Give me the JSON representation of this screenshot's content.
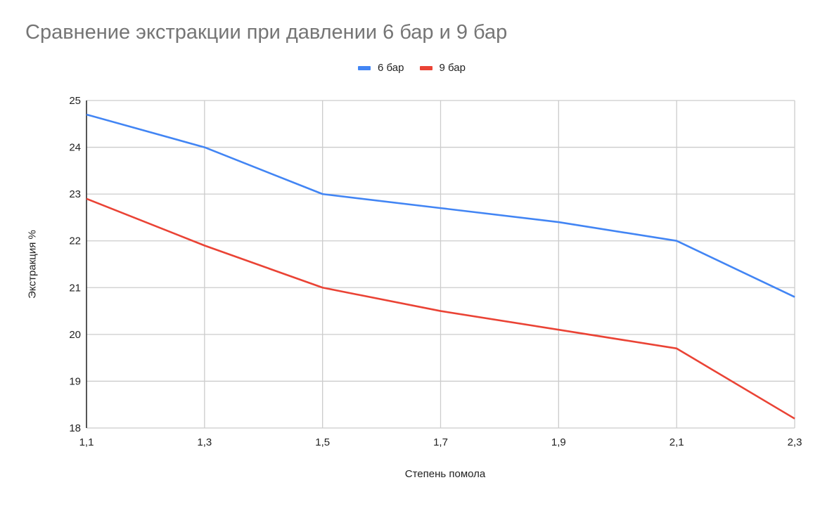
{
  "chart_data": {
    "type": "line",
    "title": "Сравнение экстракции при давлении 6 бар и 9 бар",
    "xlabel": "Степень помола",
    "ylabel": "Экстракция %",
    "x": [
      "1,1",
      "1,3",
      "1,5",
      "1,7",
      "1,9",
      "2,1",
      "2,3"
    ],
    "series": [
      {
        "name": "6 бар",
        "color": "#4285F4",
        "values": [
          24.7,
          24.0,
          23.0,
          22.7,
          22.4,
          22.0,
          20.8
        ]
      },
      {
        "name": "9 бар",
        "color": "#EA4335",
        "values": [
          22.9,
          21.9,
          21.0,
          20.5,
          20.1,
          19.7,
          18.2
        ]
      }
    ],
    "ylim": [
      18,
      25
    ],
    "yticks": [
      "18",
      "19",
      "20",
      "21",
      "22",
      "23",
      "24",
      "25"
    ],
    "grid": true,
    "legend_position": "top"
  }
}
